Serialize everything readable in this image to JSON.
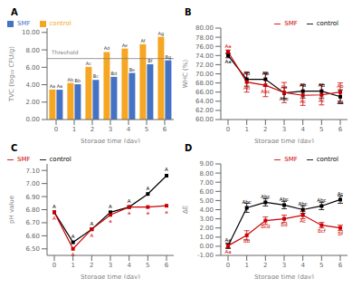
{
  "chart_data": [
    {
      "type": "bar",
      "title": "A",
      "xlabel": "Storage time (day)",
      "ylabel": "TVC (log₁₀ CFU/g)",
      "categories": [
        0,
        1,
        2,
        3,
        4,
        5,
        6
      ],
      "series": [
        {
          "name": "control",
          "color": "#F5A623",
          "values": [
            3.45,
            4.2,
            6.05,
            7.75,
            8.15,
            8.65,
            9.5
          ],
          "value_labels": [
            "Aa",
            "Ab",
            "Ac",
            "Ad",
            "Ae",
            "Af",
            "Ag"
          ]
        },
        {
          "name": "SMF",
          "color": "#4472C4",
          "values": [
            3.42,
            4.05,
            4.55,
            4.9,
            5.35,
            6.35,
            6.8
          ],
          "value_labels": [
            "Aa",
            "Bb",
            "Bc",
            "Bd",
            "Be",
            "Bf",
            "Bg"
          ]
        }
      ],
      "ylim": [
        0,
        10.5
      ],
      "yticks": [
        {
          "value": 0.0,
          "label": "0.00"
        },
        {
          "value": 2.0,
          "label": "2.00"
        },
        {
          "value": 4.0,
          "label": "4.00"
        },
        {
          "value": 6.0,
          "label": "6.00"
        },
        {
          "value": 8.0,
          "label": "8.00"
        },
        {
          "value": 10.0,
          "label": "10.00"
        }
      ],
      "annotations": [
        {
          "text": "Threshold",
          "y": 7.0,
          "color": "gray"
        }
      ],
      "grid": false,
      "legend": "upper left"
    },
    {
      "type": "line",
      "title": "B",
      "xlabel": "Storage time (day)",
      "ylabel": "WHC (%)",
      "categories": [
        0,
        1,
        2,
        3,
        4,
        5,
        6
      ],
      "series": [
        {
          "name": "control",
          "color": "#000000",
          "marker": "square",
          "values": [
            74.0,
            68.8,
            68.8,
            65.8,
            66.2,
            66.2,
            65.0
          ],
          "errors": [
            0.5,
            1.5,
            1.5,
            1.2,
            1.5,
            1.5,
            1.5
          ],
          "value_labels": [
            "Aa",
            "Ab",
            "Ab",
            "Abc",
            "Ab",
            "Ab",
            "Aa"
          ]
        },
        {
          "name": "SMF",
          "color": "#CC0000",
          "marker": "square",
          "values": [
            74.8,
            68.2,
            67.5,
            65.9,
            65.3,
            65.4,
            66.0
          ],
          "errors": [
            0.4,
            2.2,
            2.5,
            2.2,
            2.2,
            2.2,
            2.0
          ],
          "value_labels": [
            "Aa",
            "Ab",
            "Abc",
            "Ab",
            "Ac",
            "Ac",
            "Ab"
          ]
        }
      ],
      "ylim": [
        60.0,
        80.0
      ],
      "yticks": [
        {
          "value": 60.0,
          "label": "60.00"
        },
        {
          "value": 62.0,
          "label": "62.00"
        },
        {
          "value": 64.0,
          "label": "64.00"
        },
        {
          "value": 66.0,
          "label": "66.00"
        },
        {
          "value": 68.0,
          "label": "68.00"
        },
        {
          "value": 70.0,
          "label": "70.00"
        },
        {
          "value": 72.0,
          "label": "72.00"
        },
        {
          "value": 74.0,
          "label": "74.00"
        },
        {
          "value": 76.0,
          "label": "76.00"
        },
        {
          "value": 78.0,
          "label": "78.00"
        },
        {
          "value": 80.0,
          "label": "80.00"
        }
      ],
      "grid": false,
      "legend": "upper right"
    },
    {
      "type": "line",
      "title": "C",
      "xlabel": "Storage time (day)",
      "ylabel": "pH value",
      "categories": [
        0,
        1,
        2,
        3,
        4,
        5,
        6
      ],
      "series": [
        {
          "name": "control",
          "color": "#000000",
          "marker": "square",
          "values": [
            6.78,
            6.55,
            6.65,
            6.78,
            6.82,
            6.92,
            7.06
          ],
          "value_labels": [
            "A",
            "A",
            "A",
            "A",
            "A",
            "A",
            "A"
          ]
        },
        {
          "name": "SMF",
          "color": "#CC0000",
          "marker": "square",
          "values": [
            6.78,
            6.5,
            6.65,
            6.76,
            6.82,
            6.82,
            6.83
          ],
          "value_labels": [
            "A",
            "A",
            "A",
            "a",
            "a",
            "a",
            "a"
          ]
        }
      ],
      "ylim": [
        6.45,
        7.15
      ],
      "yticks": [
        {
          "value": 6.5,
          "label": "6.50"
        },
        {
          "value": 6.6,
          "label": "6.60"
        },
        {
          "value": 6.7,
          "label": "6.70"
        },
        {
          "value": 6.8,
          "label": "6.80"
        },
        {
          "value": 6.9,
          "label": "6.90"
        },
        {
          "value": 7.0,
          "label": "7.00"
        },
        {
          "value": 7.1,
          "label": "7.10"
        }
      ],
      "grid": false,
      "legend": "upper left"
    },
    {
      "type": "line",
      "title": "D",
      "xlabel": "Storage time (day)",
      "ylabel": "ΔE",
      "categories": [
        0,
        1,
        2,
        3,
        4,
        5,
        6
      ],
      "series": [
        {
          "name": "control",
          "color": "#000000",
          "marker": "square",
          "values": [
            0.05,
            4.2,
            4.8,
            4.5,
            4.0,
            4.4,
            5.1
          ],
          "errors": [
            0.3,
            0.5,
            0.4,
            0.4,
            0.4,
            0.4,
            0.4
          ],
          "value_labels": [
            "Aa",
            "Abc",
            "Abc",
            "Abc",
            "Abc",
            "Abc",
            "Ac"
          ]
        },
        {
          "name": "SMF",
          "color": "#CC0000",
          "marker": "square",
          "values": [
            0.05,
            1.2,
            2.8,
            3.0,
            3.4,
            2.3,
            2.0
          ],
          "errors": [
            0.2,
            0.5,
            0.4,
            0.4,
            0.4,
            0.3,
            0.3
          ],
          "value_labels": [
            "Aa",
            "Bb",
            "Bcd",
            "Bd",
            "Ac",
            "Bcf",
            "Bf"
          ]
        }
      ],
      "ylim": [
        -1.0,
        9.0
      ],
      "yticks": [
        {
          "value": -1.0,
          "label": "-1.00"
        },
        {
          "value": 0.0,
          "label": "0.00"
        },
        {
          "value": 1.0,
          "label": "1.00"
        },
        {
          "value": 2.0,
          "label": "2.00"
        },
        {
          "value": 3.0,
          "label": "3.00"
        },
        {
          "value": 4.0,
          "label": "4.00"
        },
        {
          "value": 5.0,
          "label": "5.00"
        },
        {
          "value": 6.0,
          "label": "6.00"
        },
        {
          "value": 7.0,
          "label": "7.00"
        },
        {
          "value": 8.0,
          "label": "8.00"
        },
        {
          "value": 9.0,
          "label": "9.00"
        }
      ],
      "grid": false,
      "legend": "upper right"
    }
  ]
}
